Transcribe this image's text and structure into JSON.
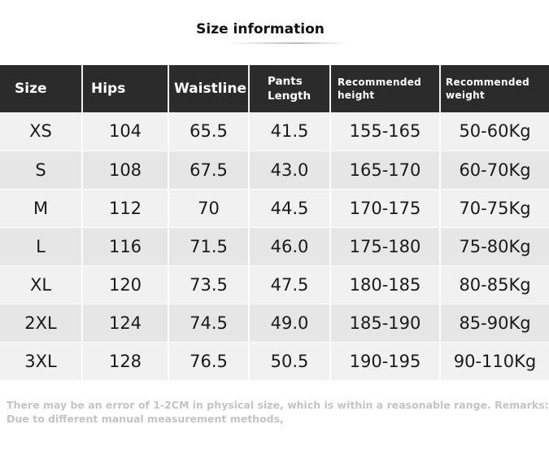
{
  "title": "Size information",
  "table": {
    "headers": [
      [
        "Size"
      ],
      [
        "Hips"
      ],
      [
        "Waistline"
      ],
      [
        "Pants",
        "Length"
      ],
      [
        "Recommended",
        "height"
      ],
      [
        "Recommended",
        "weight"
      ]
    ],
    "rows": [
      [
        "XS",
        "104",
        "65.5",
        "41.5",
        "155-165",
        "50-60Kg"
      ],
      [
        "S",
        "108",
        "67.5",
        "43.0",
        "165-170",
        "60-70Kg"
      ],
      [
        "M",
        "112",
        "70",
        "44.5",
        "170-175",
        "70-75Kg"
      ],
      [
        "L",
        "116",
        "71.5",
        "46.0",
        "175-180",
        "75-80Kg"
      ],
      [
        "XL",
        "120",
        "73.5",
        "47.5",
        "180-185",
        "80-85Kg"
      ],
      [
        "2XL",
        "124",
        "74.5",
        "49.0",
        "185-190",
        "85-90Kg"
      ],
      [
        "3XL",
        "128",
        "76.5",
        "50.5",
        "190-195",
        "90-110Kg"
      ]
    ]
  },
  "note": {
    "line1": "There may be an error of 1-2CM in physical size, which is within a reasonable range. Remarks:",
    "line2": "Due to different manual measurement methods,"
  }
}
